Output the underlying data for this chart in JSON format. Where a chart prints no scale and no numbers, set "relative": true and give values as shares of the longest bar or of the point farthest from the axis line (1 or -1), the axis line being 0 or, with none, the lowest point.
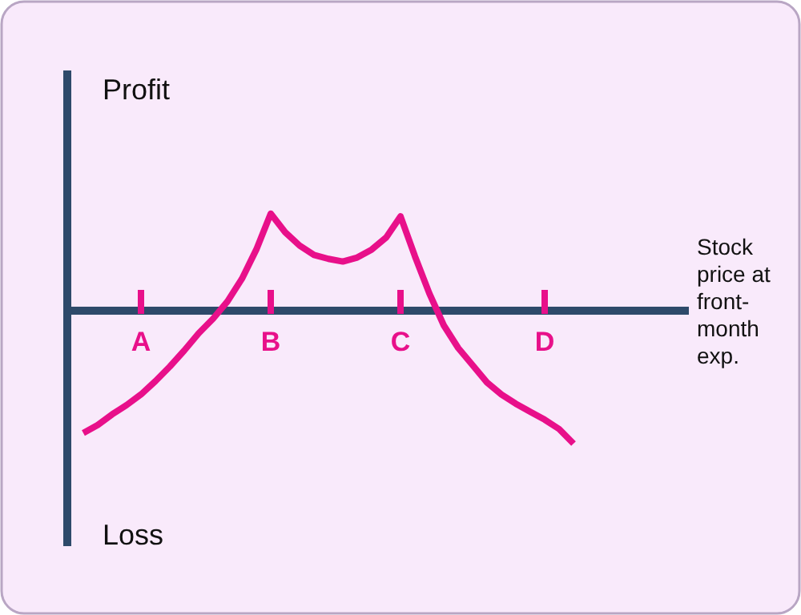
{
  "chart_data": {
    "type": "line",
    "relative": true,
    "annotations": [
      "Profit",
      "Loss",
      "Stock price at front-month exp."
    ],
    "categories": [
      null,
      null,
      null,
      null,
      "A",
      null,
      null,
      null,
      null,
      null,
      null,
      null,
      null,
      "B",
      null,
      null,
      null,
      null,
      null,
      null,
      null,
      null,
      "C",
      null,
      null,
      null,
      null,
      null,
      null,
      null,
      null,
      null,
      "D",
      null,
      null
    ],
    "series": [
      {
        "color": "#e8108a",
        "values": [
          -0.92,
          -0.86,
          -0.78,
          -0.71,
          -0.63,
          -0.53,
          -0.42,
          -0.3,
          -0.17,
          -0.06,
          0.07,
          0.24,
          0.46,
          0.73,
          0.59,
          0.49,
          0.42,
          0.39,
          0.37,
          0.4,
          0.46,
          0.55,
          0.71,
          0.41,
          0.13,
          -0.11,
          -0.28,
          -0.41,
          -0.54,
          -0.63,
          -0.7,
          -0.76,
          -0.82,
          -0.89,
          -1
        ]
      }
    ]
  }
}
